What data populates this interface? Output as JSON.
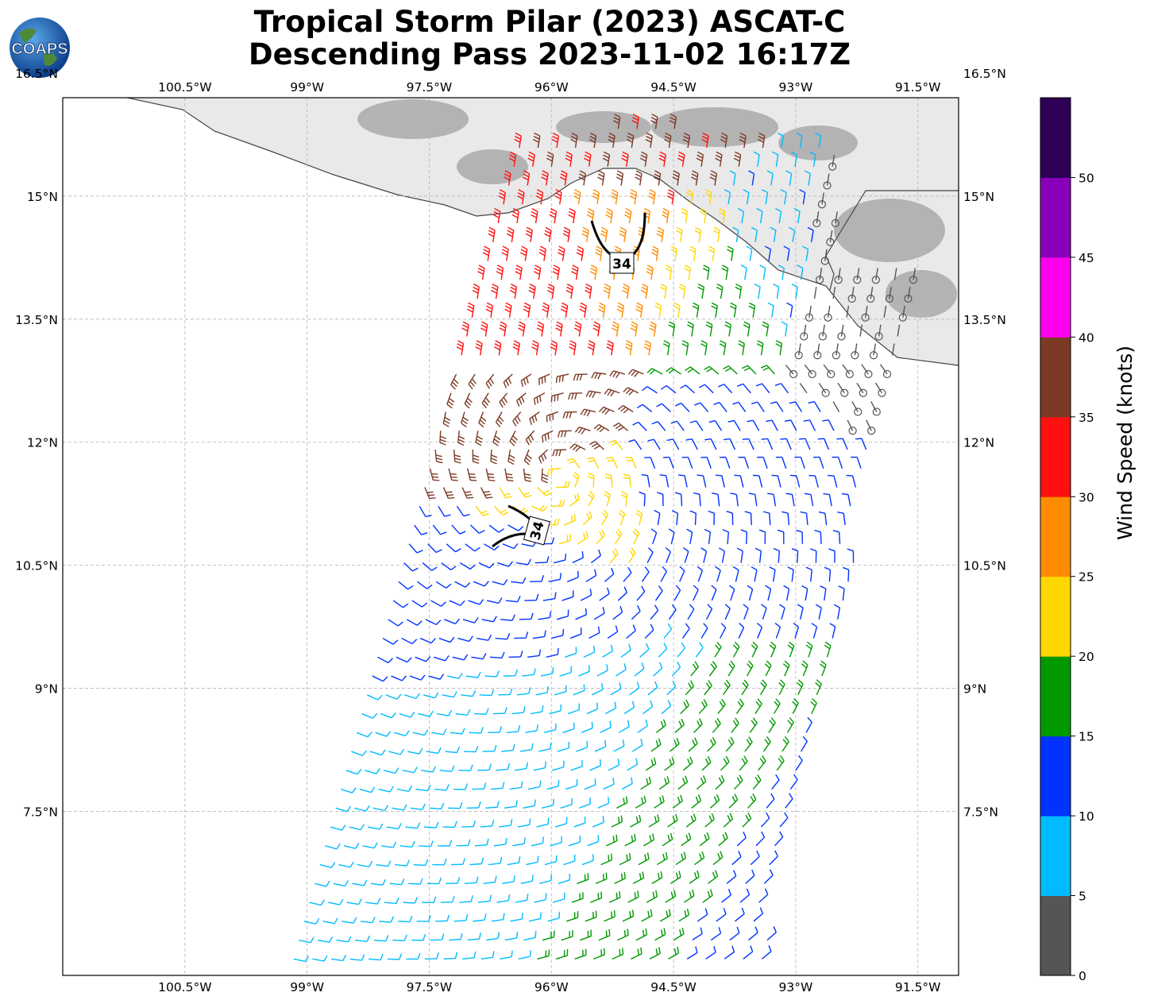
{
  "title": {
    "line1": "Tropical Storm Pilar (2023) ASCAT-C",
    "line2": "Descending Pass 2023-11-02 16:17Z"
  },
  "logo": {
    "text": "COAPS",
    "icon": "globe-logo-icon"
  },
  "map": {
    "lon_range": [
      -102.0,
      -91.0
    ],
    "lat_range": [
      5.5,
      16.2
    ],
    "grid": true,
    "x_ticks": [
      "100.5°W",
      "99°W",
      "97.5°W",
      "96°W",
      "94.5°W",
      "93°W",
      "91.5°W"
    ],
    "y_ticks": [
      "16.5°N",
      "15°N",
      "13.5°N",
      "12°N",
      "10.5°N",
      "9°N",
      "7.5°N"
    ],
    "contour_labels": [
      "34",
      "34"
    ]
  },
  "colorbar": {
    "label": "Wind Speed (knots)",
    "ticks": [
      "0",
      "5",
      "10",
      "15",
      "20",
      "25",
      "30",
      "35",
      "40",
      "45",
      "50"
    ],
    "colors": [
      "#555555",
      "#00bbff",
      "#0033ff",
      "#009900",
      "#ffd700",
      "#ff8c00",
      "#ff1010",
      "#7b3a24",
      "#ff00ee",
      "#8800bb",
      "#2e0057"
    ]
  },
  "chart_data": {
    "type": "scatter",
    "title": "Tropical Storm Pilar (2023) ASCAT-C Descending Pass 2023-11-02 16:17Z",
    "xlabel": "",
    "ylabel": "",
    "x_range_deg_lon": [
      -102.0,
      -91.0
    ],
    "y_range_deg_lat": [
      5.5,
      16.2
    ],
    "colorbar_range_knots": [
      0,
      55
    ],
    "wind_contour_knots": 34,
    "regions": [
      {
        "lon": -94.75,
        "lat": 15.6,
        "speed_kt": 36
      },
      {
        "lon": -96.1,
        "lat": 14.0,
        "speed_kt": 32
      },
      {
        "lon": -95.0,
        "lat": 14.3,
        "speed_kt": 27
      },
      {
        "lon": -94.2,
        "lat": 14.2,
        "speed_kt": 22
      },
      {
        "lon": -93.9,
        "lat": 14.0,
        "speed_kt": 17
      },
      {
        "lon": -93.5,
        "lat": 14.2,
        "speed_kt": 9
      },
      {
        "lon": -92.3,
        "lat": 13.9,
        "speed_kt": 3
      },
      {
        "lon": -96.0,
        "lat": 12.0,
        "speed_kt": 37
      },
      {
        "lon": -95.8,
        "lat": 11.4,
        "speed_kt": 22
      },
      {
        "lon": -94.0,
        "lat": 11.5,
        "speed_kt": 13
      },
      {
        "lon": -96.3,
        "lat": 10.2,
        "speed_kt": 12
      },
      {
        "lon": -96.0,
        "lat": 8.5,
        "speed_kt": 8
      },
      {
        "lon": -94.0,
        "lat": 7.4,
        "speed_kt": 17
      },
      {
        "lon": -93.3,
        "lat": 7.0,
        "speed_kt": 12
      }
    ]
  }
}
